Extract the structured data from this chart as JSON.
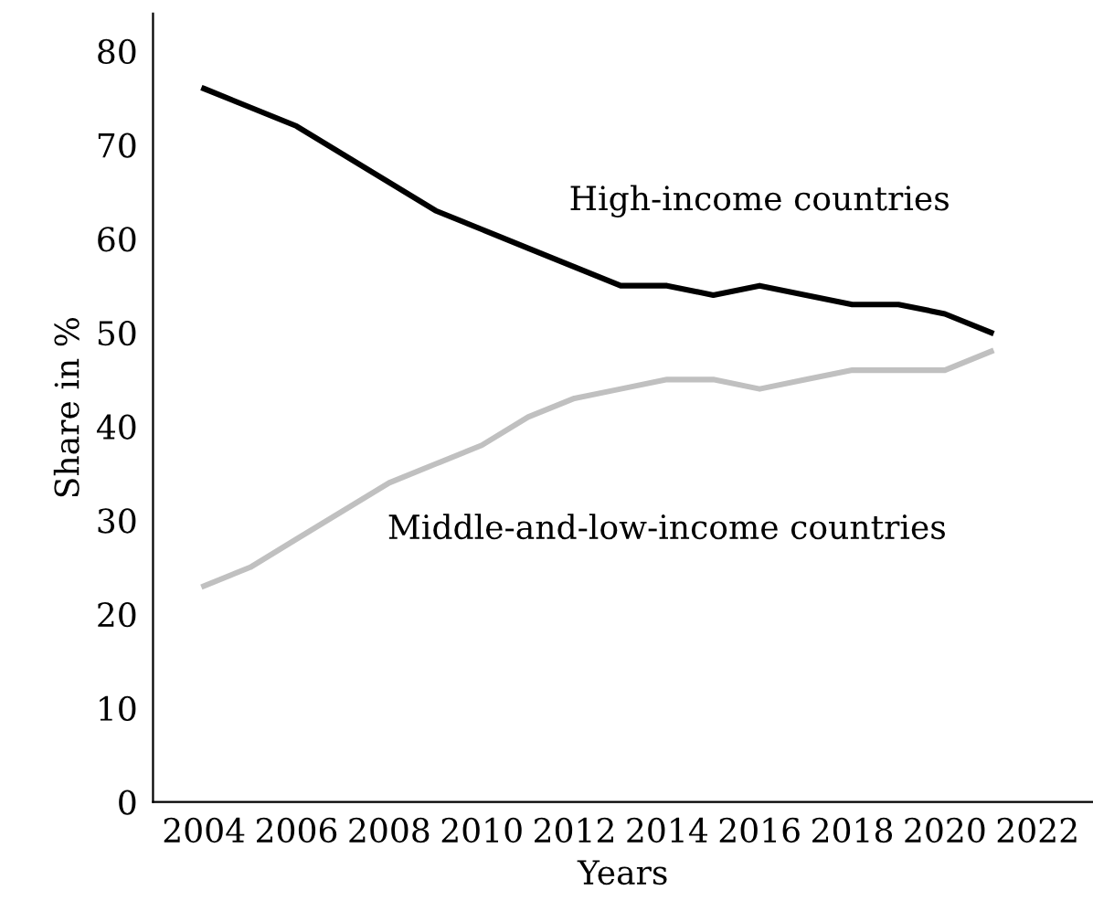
{
  "chart_data": {
    "type": "line",
    "xlabel": "Years",
    "ylabel": "Share in %",
    "x": [
      2004,
      2005,
      2006,
      2007,
      2008,
      2009,
      2010,
      2011,
      2012,
      2013,
      2014,
      2015,
      2016,
      2017,
      2018,
      2019,
      2020,
      2021
    ],
    "series": [
      {
        "name": "High-income countries",
        "color": "#000000",
        "values": [
          76,
          74,
          72,
          69,
          66,
          63,
          61,
          59,
          57,
          55,
          55,
          54,
          55,
          54,
          53,
          53,
          52,
          50
        ]
      },
      {
        "name": "Middle-and-low-income countries",
        "color": "#c0c0c0",
        "values": [
          23,
          25,
          28,
          31,
          34,
          36,
          38,
          41,
          43,
          44,
          45,
          45,
          44,
          45,
          46,
          46,
          46,
          48
        ]
      }
    ],
    "xlim": [
      2002.9,
      2023.2
    ],
    "xticks": [
      2004,
      2006,
      2008,
      2010,
      2012,
      2014,
      2016,
      2018,
      2020,
      2022
    ],
    "ylim": [
      0,
      84
    ],
    "yticks": [
      0,
      10,
      20,
      30,
      40,
      50,
      60,
      70,
      80
    ],
    "grid": false,
    "legend": false,
    "marker": "none",
    "line_style": "solid"
  }
}
